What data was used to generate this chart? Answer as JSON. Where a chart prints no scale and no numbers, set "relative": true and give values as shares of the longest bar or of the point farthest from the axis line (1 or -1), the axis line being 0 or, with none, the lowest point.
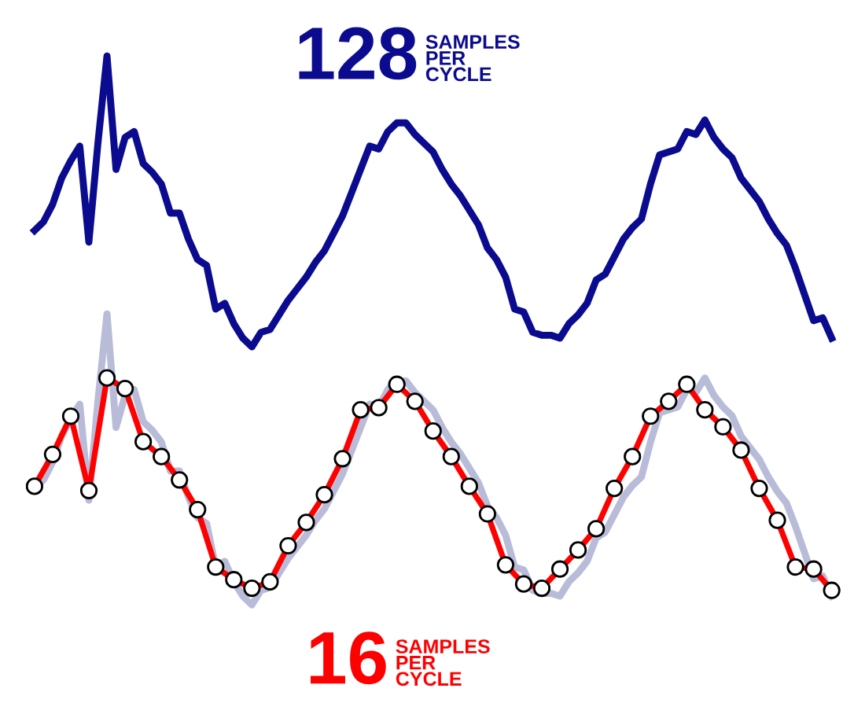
{
  "chart_data": [
    {
      "type": "line",
      "title": "128",
      "subtitle": "SAMPLES\nPER\nCYCLE",
      "relative": true,
      "categories": [
        null,
        null,
        null,
        null,
        null,
        null,
        null,
        null,
        null,
        null,
        null,
        null,
        null,
        null,
        null,
        null,
        null,
        null,
        null,
        null,
        null,
        null,
        null,
        null,
        null,
        null,
        null,
        null,
        null,
        null,
        null,
        null,
        null,
        null,
        null,
        null,
        null,
        null,
        null,
        null,
        null,
        null,
        null,
        null,
        null,
        null,
        null,
        null,
        null,
        null,
        null,
        null,
        null,
        null,
        null,
        null,
        null,
        null,
        null,
        null,
        null,
        null,
        null,
        null,
        null,
        null,
        null,
        null,
        null,
        null,
        null,
        null,
        null,
        null,
        null,
        null,
        null,
        null,
        null,
        null,
        null,
        null,
        null,
        null,
        null,
        null,
        null,
        null,
        null
      ],
      "series": [
        {
          "color": "#0b0b8f",
          "values": [
            0.4,
            0.43,
            0.49,
            0.58,
            0.64,
            0.69,
            0.36,
            0.7,
            1.0,
            0.61,
            0.72,
            0.74,
            0.63,
            0.6,
            0.56,
            0.46,
            0.46,
            0.37,
            0.3,
            0.28,
            0.13,
            0.15,
            0.08,
            0.03,
            0.0,
            0.05,
            0.06,
            0.11,
            0.16,
            0.2,
            0.24,
            0.29,
            0.33,
            0.39,
            0.45,
            0.53,
            0.61,
            0.69,
            0.68,
            0.74,
            0.77,
            0.77,
            0.73,
            0.7,
            0.67,
            0.61,
            0.56,
            0.52,
            0.47,
            0.42,
            0.34,
            0.3,
            0.24,
            0.13,
            0.12,
            0.05,
            0.04,
            0.04,
            0.03,
            0.08,
            0.11,
            0.15,
            0.23,
            0.25,
            0.31,
            0.37,
            0.41,
            0.44,
            0.56,
            0.66,
            0.67,
            0.68,
            0.74,
            0.73,
            0.78,
            0.72,
            0.68,
            0.65,
            0.58,
            0.54,
            0.5,
            0.44,
            0.39,
            0.35,
            0.27,
            0.18,
            0.09,
            0.1,
            0.03
          ]
        }
      ]
    },
    {
      "type": "line",
      "relative": true,
      "categories": [
        null,
        null,
        null,
        null,
        null,
        null,
        null,
        null,
        null,
        null,
        null,
        null,
        null,
        null,
        null,
        null,
        null,
        null,
        null,
        null,
        null,
        null,
        null,
        null,
        null,
        null,
        null,
        null,
        null,
        null,
        null,
        null,
        null,
        null,
        null,
        null,
        null,
        null,
        null,
        null,
        null,
        null,
        null,
        null,
        null,
        null,
        null,
        null,
        null,
        null,
        null,
        null,
        null,
        null,
        null,
        null,
        null,
        null,
        null,
        null,
        null,
        null,
        null,
        null,
        null,
        null,
        null,
        null,
        null,
        null,
        null,
        null,
        null,
        null,
        null,
        null,
        null,
        null,
        null,
        null,
        null,
        null,
        null,
        null,
        null,
        null,
        null,
        null,
        null
      ],
      "series": [
        {
          "color": "#b8bcd8",
          "values": [
            0.4,
            0.43,
            0.49,
            0.58,
            0.64,
            0.69,
            0.36,
            0.7,
            1.0,
            0.61,
            0.72,
            0.74,
            0.63,
            0.6,
            0.56,
            0.46,
            0.46,
            0.37,
            0.3,
            0.28,
            0.13,
            0.15,
            0.08,
            0.03,
            0.0,
            0.05,
            0.06,
            0.11,
            0.16,
            0.2,
            0.24,
            0.29,
            0.33,
            0.39,
            0.45,
            0.53,
            0.61,
            0.69,
            0.68,
            0.74,
            0.77,
            0.77,
            0.73,
            0.7,
            0.67,
            0.61,
            0.56,
            0.52,
            0.47,
            0.42,
            0.34,
            0.3,
            0.24,
            0.13,
            0.12,
            0.05,
            0.04,
            0.04,
            0.03,
            0.08,
            0.11,
            0.15,
            0.23,
            0.25,
            0.31,
            0.37,
            0.41,
            0.44,
            0.56,
            0.66,
            0.67,
            0.68,
            0.74,
            0.73,
            0.78,
            0.72,
            0.68,
            0.65,
            0.58,
            0.54,
            0.5,
            0.44,
            0.39,
            0.35,
            0.27,
            0.18,
            0.09,
            0.1,
            0.03
          ]
        }
      ]
    },
    {
      "type": "line",
      "title": "16",
      "subtitle": "SAMPLES\nPER\nCYCLE",
      "relative": true,
      "marker": "circle",
      "categories": [
        null,
        null,
        null,
        null,
        null,
        null,
        null,
        null,
        null,
        null,
        null,
        null,
        null,
        null,
        null,
        null,
        null,
        null,
        null,
        null,
        null,
        null,
        null,
        null,
        null,
        null,
        null,
        null,
        null,
        null,
        null,
        null,
        null,
        null,
        null,
        null,
        null,
        null,
        null,
        null,
        null,
        null,
        null,
        null,
        null
      ],
      "series": [
        {
          "color": "#ff0000",
          "values": [
            0.49,
            0.64,
            0.82,
            0.47,
            1.0,
            0.95,
            0.7,
            0.63,
            0.52,
            0.38,
            0.11,
            0.05,
            0.01,
            0.04,
            0.21,
            0.32,
            0.45,
            0.62,
            0.85,
            0.86,
            0.97,
            0.89,
            0.75,
            0.63,
            0.49,
            0.36,
            0.12,
            0.03,
            0.01,
            0.1,
            0.19,
            0.29,
            0.48,
            0.63,
            0.82,
            0.89,
            0.97,
            0.85,
            0.77,
            0.66,
            0.48,
            0.33,
            0.11,
            0.1,
            0.0
          ]
        }
      ]
    }
  ]
}
